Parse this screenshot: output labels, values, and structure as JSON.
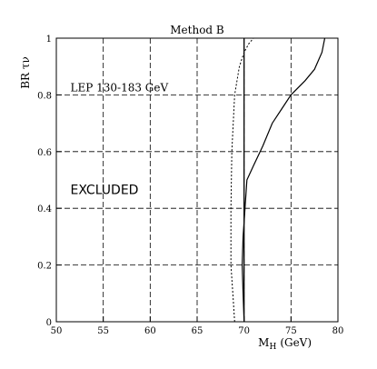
{
  "chart_data": {
    "type": "line",
    "title": "Method B",
    "xlabel": "M",
    "xlabel_sub": "H",
    "xlabel_unit": "(GeV)",
    "ylabel": "BR τν",
    "xlim": [
      50,
      80
    ],
    "ylim": [
      0,
      1
    ],
    "xticks": [
      50,
      55,
      60,
      65,
      70,
      75,
      80
    ],
    "xtick_labels": [
      "50",
      "55",
      "60",
      "65",
      "70",
      "75",
      "80"
    ],
    "yticks": [
      0,
      0.2,
      0.4,
      0.6,
      0.8,
      1
    ],
    "ytick_labels": [
      "0",
      "0.2",
      "0.4",
      "0.6",
      "0.8",
      "1"
    ],
    "grid": true,
    "annotations": [
      {
        "text": "LEP 130-183 GeV",
        "x": 51.5,
        "y": 0.8
      },
      {
        "text": "EXCLUDED",
        "x": 51.5,
        "y": 0.45
      }
    ],
    "vlines": [
      {
        "x": 70,
        "style": "solid"
      }
    ],
    "series": [
      {
        "style": "solid",
        "points": [
          [
            70.0,
            0.0
          ],
          [
            69.9,
            0.1
          ],
          [
            69.8,
            0.2
          ],
          [
            69.9,
            0.3
          ],
          [
            70.1,
            0.4
          ],
          [
            70.3,
            0.5
          ],
          [
            71.0,
            0.55
          ],
          [
            72.0,
            0.62
          ],
          [
            73.0,
            0.7
          ],
          [
            74.0,
            0.75
          ],
          [
            75.0,
            0.8
          ],
          [
            76.5,
            0.85
          ],
          [
            77.5,
            0.89
          ],
          [
            78.3,
            0.95
          ],
          [
            78.6,
            1.0
          ]
        ]
      },
      {
        "style": "dotted",
        "points": [
          [
            69.0,
            0.0
          ],
          [
            68.8,
            0.1
          ],
          [
            68.6,
            0.2
          ],
          [
            68.6,
            0.4
          ],
          [
            68.7,
            0.6
          ],
          [
            69.0,
            0.8
          ],
          [
            69.5,
            0.9
          ],
          [
            70.0,
            0.95
          ],
          [
            70.5,
            0.98
          ],
          [
            71.0,
            1.0
          ]
        ]
      }
    ]
  }
}
